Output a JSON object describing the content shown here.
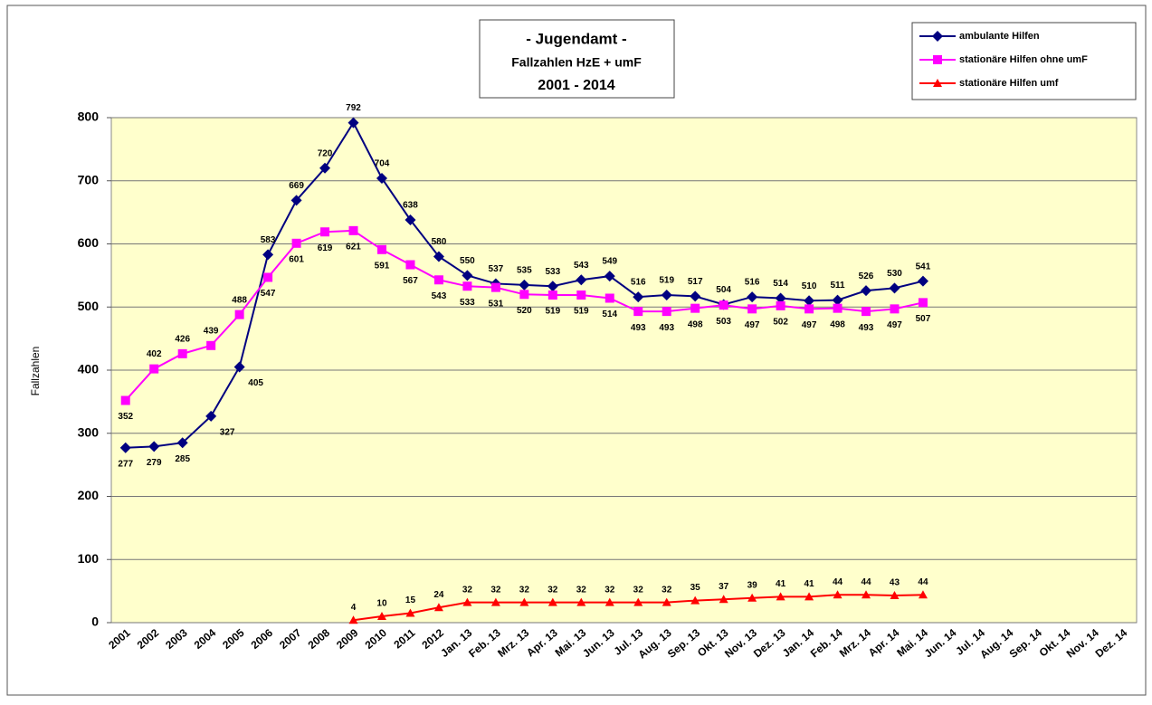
{
  "chart_data": {
    "type": "line",
    "title": [
      "- Jugendamt -",
      "Fallzahlen HzE + umF",
      "2001 - 2014"
    ],
    "y_label": "Fallzahlen",
    "categories": [
      "2001",
      "2002",
      "2003",
      "2004",
      "2005",
      "2006",
      "2007",
      "2008",
      "2009",
      "2010",
      "2011",
      "2012",
      "Jan. 13",
      "Feb. 13",
      "Mrz. 13",
      "Apr. 13",
      "Mai. 13",
      "Jun. 13",
      "Jul. 13",
      "Aug. 13",
      "Sep. 13",
      "Okt. 13",
      "Nov. 13",
      "Dez. 13",
      "Jan. 14",
      "Feb. 14",
      "Mrz. 14",
      "Apr. 14",
      "Mai. 14",
      "Jun. 14",
      "Jul. 14",
      "Aug. 14",
      "Sep. 14",
      "Okt. 14",
      "Nov. 14",
      "Dez. 14"
    ],
    "series": [
      {
        "name": "ambulante Hilfen",
        "color": "#000080",
        "marker": "diamond",
        "values": [
          277,
          279,
          285,
          327,
          405,
          583,
          669,
          720,
          792,
          704,
          638,
          580,
          550,
          537,
          535,
          533,
          543,
          549,
          516,
          519,
          517,
          504,
          516,
          514,
          510,
          511,
          526,
          530,
          541,
          null,
          null,
          null,
          null,
          null,
          null,
          null
        ]
      },
      {
        "name": "stationäre Hilfen ohne umF",
        "color": "#ff00ff",
        "marker": "square",
        "values": [
          352,
          402,
          426,
          439,
          488,
          547,
          601,
          619,
          621,
          591,
          567,
          543,
          533,
          531,
          520,
          519,
          519,
          514,
          493,
          493,
          498,
          503,
          497,
          502,
          497,
          498,
          493,
          497,
          507,
          null,
          null,
          null,
          null,
          null,
          null,
          null
        ]
      },
      {
        "name": "stationäre Hilfen umf",
        "color": "#ff0000",
        "marker": "triangle",
        "values": [
          null,
          null,
          null,
          null,
          null,
          null,
          null,
          null,
          4,
          10,
          15,
          24,
          32,
          32,
          32,
          32,
          32,
          32,
          32,
          32,
          35,
          37,
          39,
          41,
          41,
          44,
          44,
          43,
          44,
          null,
          null,
          null,
          null,
          null,
          null,
          null
        ]
      }
    ],
    "ylim": [
      0,
      800
    ],
    "yticks": [
      0,
      100,
      200,
      300,
      400,
      500,
      600,
      700,
      800
    ],
    "grid": true,
    "legend": "top-right",
    "background": "#ffffcc"
  }
}
